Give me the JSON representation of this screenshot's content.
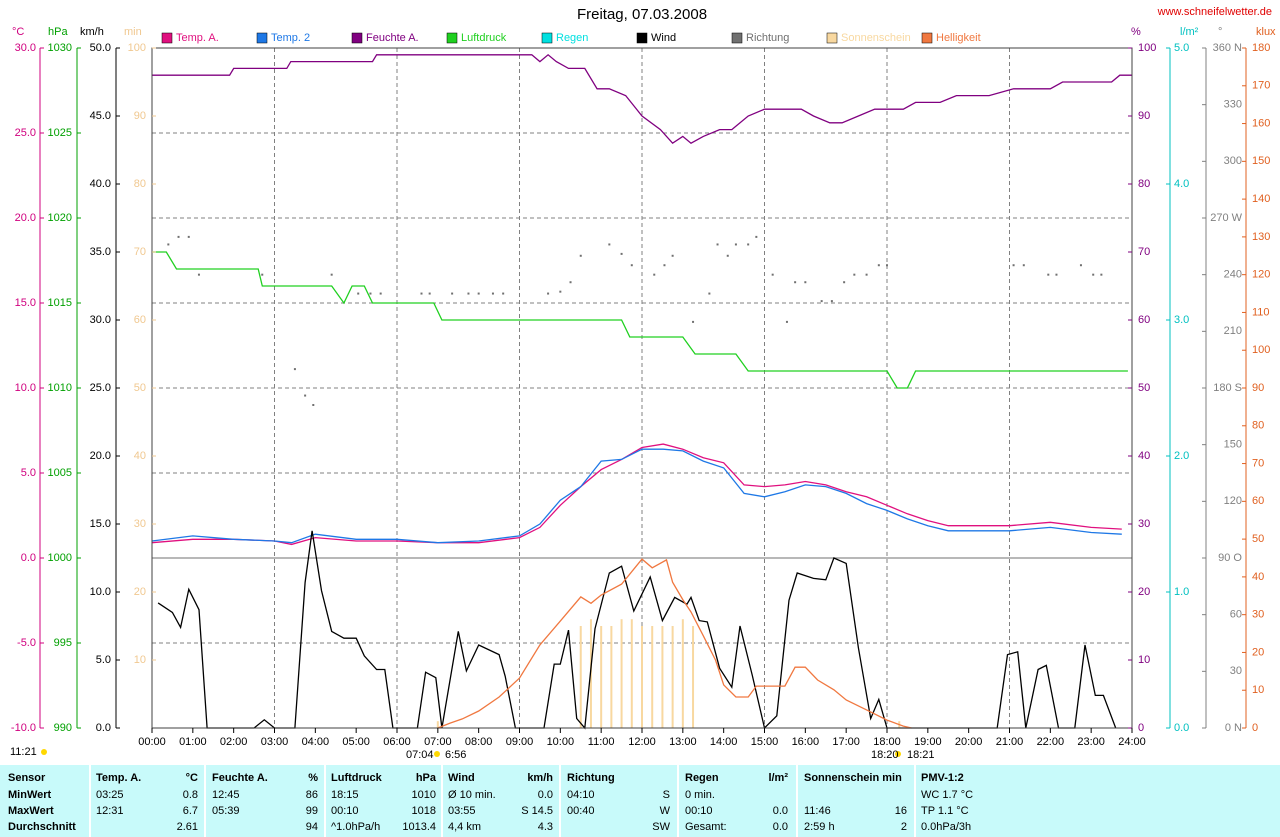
{
  "chart_data": {
    "type": "line",
    "title": "Freitag, 07.03.2008",
    "source": "www.schneifelwetter.de",
    "grid": true,
    "xlim": [
      0,
      24
    ],
    "xticks": [
      {
        "value": 0,
        "label": "00:00"
      },
      {
        "value": 1,
        "label": "01:00"
      },
      {
        "value": 2,
        "label": "02:00"
      },
      {
        "value": 3,
        "label": "03:00"
      },
      {
        "value": 4,
        "label": "04:00"
      },
      {
        "value": 5,
        "label": "05:00"
      },
      {
        "value": 6,
        "label": "06:00"
      },
      {
        "value": 7,
        "label": "07:00"
      },
      {
        "value": 8,
        "label": "08:00"
      },
      {
        "value": 9,
        "label": "09:00"
      },
      {
        "value": 10,
        "label": "10:00"
      },
      {
        "value": 11,
        "label": "11:00"
      },
      {
        "value": 12,
        "label": "12:00"
      },
      {
        "value": 13,
        "label": "13:00"
      },
      {
        "value": 14,
        "label": "14:00"
      },
      {
        "value": 15,
        "label": "15:00"
      },
      {
        "value": 16,
        "label": "16:00"
      },
      {
        "value": 17,
        "label": "17:00"
      },
      {
        "value": 18,
        "label": "18:00"
      },
      {
        "value": 19,
        "label": "19:00"
      },
      {
        "value": 20,
        "label": "20:00"
      },
      {
        "value": 21,
        "label": "21:00"
      },
      {
        "value": 22,
        "label": "22:00"
      },
      {
        "value": 23,
        "label": "23:00"
      },
      {
        "value": 24,
        "label": "24:00"
      }
    ],
    "axes": [
      {
        "label": "°C",
        "color": "#d0007f",
        "lim": [
          -10,
          30
        ],
        "ticks": [
          {
            "value": 30,
            "label": "30.0"
          },
          {
            "value": 25,
            "label": "25.0"
          },
          {
            "value": 20,
            "label": "20.0"
          },
          {
            "value": 15,
            "label": "15.0"
          },
          {
            "value": 10,
            "label": "10.0"
          },
          {
            "value": 5,
            "label": "5.0"
          },
          {
            "value": 0,
            "label": "0.0"
          },
          {
            "value": -5,
            "label": "-5.0"
          },
          {
            "value": -10,
            "label": "-10.0"
          }
        ]
      },
      {
        "label": "hPa",
        "color": "#00a000",
        "lim": [
          990,
          1030
        ],
        "ticks": [
          1030,
          1025,
          1020,
          1015,
          1010,
          1005,
          1000,
          995,
          990
        ]
      },
      {
        "label": "km/h",
        "color": "#000000",
        "lim": [
          0,
          50
        ],
        "ticks": [
          {
            "value": 50,
            "label": "50.0"
          },
          {
            "value": 45,
            "label": "45.0"
          },
          {
            "value": 40,
            "label": "40.0"
          },
          {
            "value": 35,
            "label": "35.0"
          },
          {
            "value": 30,
            "label": "30.0"
          },
          {
            "value": 25,
            "label": "25.0"
          },
          {
            "value": 20,
            "label": "20.0"
          },
          {
            "value": 15,
            "label": "15.0"
          },
          {
            "value": 10,
            "label": "10.0"
          },
          {
            "value": 5,
            "label": "5.0"
          },
          {
            "value": 0,
            "label": "0.0"
          }
        ]
      },
      {
        "label": "min",
        "color": "#f0c890",
        "lim": [
          0,
          100
        ],
        "ticks": [
          100,
          90,
          80,
          70,
          60,
          50,
          40,
          30,
          20,
          10
        ]
      },
      {
        "label": "%",
        "color": "#800080",
        "lim": [
          0,
          100
        ],
        "ticks": [
          100,
          90,
          80,
          70,
          60,
          50,
          40,
          30,
          20,
          10,
          0
        ]
      },
      {
        "label": "l/m²",
        "color": "#00c0c0",
        "lim": [
          0,
          5
        ],
        "ticks": [
          {
            "value": 5,
            "label": "5.0"
          },
          {
            "value": 4,
            "label": "4.0"
          },
          {
            "value": 3,
            "label": "3.0"
          },
          {
            "value": 2,
            "label": "2.0"
          },
          {
            "value": 1,
            "label": "1.0"
          },
          {
            "value": 0,
            "label": "0.0"
          }
        ]
      },
      {
        "label": "°",
        "color": "#808080",
        "lim": [
          0,
          360
        ],
        "ticks": [
          {
            "value": 360,
            "label": "360 N"
          },
          330,
          300,
          {
            "value": 270,
            "label": "270 W"
          },
          240,
          210,
          {
            "value": 180,
            "label": "180 S"
          },
          150,
          120,
          {
            "value": 90,
            "label": "90 O"
          },
          60,
          30,
          {
            "value": 0,
            "label": "0 N"
          }
        ]
      },
      {
        "label": "klux",
        "color": "#e06020",
        "lim": [
          0,
          180
        ],
        "ticks": [
          180,
          170,
          160,
          150,
          140,
          130,
          120,
          110,
          100,
          90,
          80,
          70,
          60,
          50,
          40,
          30,
          20,
          10,
          0
        ]
      }
    ],
    "series": [
      {
        "name": "Temp. A.",
        "color": "#e0107f",
        "type": "line",
        "axis": 0,
        "x": [
          0,
          1,
          2,
          3,
          3.42,
          4,
          5,
          6,
          7,
          8,
          9,
          9.5,
          10,
          10.5,
          11,
          11.5,
          12,
          12.52,
          13,
          13.5,
          14,
          14.5,
          15,
          15.5,
          16,
          16.5,
          17,
          17.5,
          18,
          18.5,
          19,
          19.5,
          20,
          21,
          22,
          23,
          23.75
        ],
        "values": [
          0.9,
          1.1,
          1.1,
          1.0,
          0.8,
          1.2,
          1.0,
          1.0,
          0.9,
          0.9,
          1.2,
          1.8,
          3.1,
          4.2,
          5.2,
          5.8,
          6.5,
          6.7,
          6.4,
          5.9,
          5.6,
          4.3,
          4.2,
          4.3,
          4.5,
          4.3,
          3.9,
          3.6,
          3.1,
          2.6,
          2.2,
          1.9,
          1.9,
          1.9,
          2.1,
          1.8,
          1.7
        ]
      },
      {
        "name": "Temp. 2",
        "color": "#1e78e6",
        "type": "line",
        "axis": 0,
        "x": [
          0,
          1,
          2,
          3,
          3.42,
          4,
          5,
          6,
          7,
          8,
          9,
          9.5,
          10,
          10.5,
          11,
          11.5,
          12,
          12.52,
          13,
          13.5,
          14,
          14.5,
          15,
          15.5,
          16,
          16.5,
          17,
          17.5,
          18,
          18.5,
          19,
          19.5,
          20,
          21,
          22,
          23,
          23.75
        ],
        "values": [
          1.0,
          1.3,
          1.1,
          1.0,
          0.9,
          1.4,
          1.1,
          1.1,
          0.9,
          1.0,
          1.3,
          2.0,
          3.4,
          4.2,
          5.7,
          5.8,
          6.4,
          6.4,
          6.3,
          5.7,
          5.3,
          3.8,
          3.6,
          3.9,
          4.3,
          4.2,
          3.8,
          3.2,
          2.8,
          2.3,
          1.9,
          1.6,
          1.6,
          1.6,
          1.8,
          1.5,
          1.4
        ]
      },
      {
        "name": "Feuchte A.",
        "color": "#800080",
        "type": "line",
        "axis": 4,
        "x": [
          0,
          1.9,
          2.0,
          3.3,
          3.4,
          5.4,
          5.5,
          9.3,
          9.5,
          9.7,
          9.9,
          10.2,
          10.6,
          10.9,
          11.2,
          11.6,
          12.0,
          12.45,
          12.75,
          13.0,
          13.2,
          13.5,
          13.9,
          14.2,
          14.6,
          15.0,
          15.9,
          16.2,
          16.6,
          16.9,
          17.3,
          17.7,
          18.4,
          18.7,
          19.3,
          19.7,
          20.5,
          21.1,
          22.0,
          22.3,
          23.5,
          23.7,
          24.0
        ],
        "values": [
          96,
          96,
          97,
          97,
          98,
          98,
          99,
          99,
          98,
          99,
          98,
          97,
          97,
          94,
          94,
          93,
          90,
          88,
          86,
          87,
          86,
          87,
          88,
          88,
          90,
          91,
          91,
          90,
          89,
          89,
          90,
          91,
          91,
          92,
          92,
          93,
          93,
          94,
          94,
          95,
          95,
          96,
          96
        ]
      },
      {
        "name": "Luftdruck",
        "color": "#20d020",
        "type": "line",
        "axis": 1,
        "x": [
          0,
          0.35,
          0.6,
          2.6,
          2.7,
          4.4,
          4.7,
          4.9,
          5.2,
          5.4,
          6.9,
          7.1,
          11.5,
          11.7,
          13.0,
          13.3,
          14.3,
          14.6,
          18.0,
          18.25,
          18.5,
          18.7,
          23.9
        ],
        "values": [
          1018,
          1018,
          1017,
          1017,
          1016,
          1016,
          1015,
          1016,
          1016,
          1015,
          1015,
          1014,
          1014,
          1013,
          1013,
          1012,
          1012,
          1011,
          1011,
          1010,
          1010,
          1011,
          1011
        ]
      },
      {
        "name": "Regen",
        "color": "#00e0e0"
      },
      {
        "name": "Wind",
        "color": "#000000",
        "type": "line",
        "axis": 2,
        "x": [
          0.15,
          0.5,
          0.7,
          0.9,
          1.15,
          1.35,
          2.5,
          2.75,
          3.0,
          3.5,
          3.75,
          3.92,
          4.15,
          4.4,
          4.7,
          5.0,
          5.2,
          5.5,
          5.7,
          5.9,
          6.5,
          6.7,
          6.95,
          7.1,
          7.5,
          7.7,
          8.0,
          8.5,
          8.65,
          8.9,
          9.6,
          9.85,
          10.0,
          10.2,
          10.4,
          10.6,
          10.85,
          11.2,
          11.5,
          11.8,
          12.2,
          12.5,
          12.8,
          13.1,
          13.2,
          13.4,
          13.6,
          13.9,
          14.2,
          14.4,
          14.7,
          15.0,
          15.3,
          15.6,
          15.8,
          16.2,
          16.5,
          16.7,
          17.0,
          17.3,
          17.6,
          17.8,
          18.0,
          20.7,
          20.95,
          21.2,
          21.4,
          21.7,
          21.9,
          22.2,
          22.6,
          22.85,
          23.1,
          23.3,
          23.6
        ],
        "values": [
          9.2,
          8.5,
          7.4,
          10.2,
          8.7,
          0,
          0,
          0.6,
          0,
          0,
          10.7,
          14.5,
          10.1,
          7.1,
          6.6,
          6.6,
          5.3,
          4.3,
          4.3,
          0,
          0,
          4.1,
          3.7,
          0,
          7.1,
          4.2,
          6.1,
          5.4,
          3.8,
          0,
          0,
          4.7,
          4.7,
          7.2,
          0.7,
          0,
          7.3,
          11.4,
          11.9,
          8.6,
          11.1,
          7.9,
          9.6,
          9.1,
          9.6,
          7.9,
          7.8,
          4.4,
          3.0,
          7.5,
          3.9,
          0,
          0.9,
          9.4,
          11.4,
          11.0,
          10.9,
          12.5,
          12.1,
          5.9,
          0.7,
          2.1,
          0,
          0,
          5.4,
          5.6,
          0,
          4.3,
          4.6,
          0,
          0,
          6.1,
          2.4,
          2.4,
          0
        ]
      },
      {
        "name": "Richtung",
        "color": "#707070",
        "type": "scatter",
        "axis": 6,
        "x": [
          0.4,
          0.65,
          0.9,
          1.15,
          2.7,
          3.5,
          3.75,
          3.95,
          4.4,
          5.05,
          5.35,
          5.6,
          6.6,
          6.8,
          7.35,
          7.75,
          8.0,
          8.35,
          8.6,
          9.7,
          10.0,
          10.25,
          10.5,
          11.2,
          11.5,
          11.75,
          12.3,
          12.55,
          12.75,
          13.25,
          13.65,
          13.85,
          14.1,
          14.3,
          14.6,
          14.8,
          15.2,
          15.55,
          15.75,
          16.0,
          16.4,
          16.65,
          16.95,
          17.2,
          17.5,
          17.8,
          18.0,
          21.1,
          21.35,
          21.95,
          22.15,
          22.75,
          23.05,
          23.25
        ],
        "values": [
          256,
          260,
          260,
          240,
          240,
          190,
          176,
          171,
          240,
          230,
          230,
          230,
          230,
          230,
          230,
          230,
          230,
          230,
          230,
          230,
          231,
          236,
          250,
          256,
          251,
          245,
          240,
          245,
          250,
          215,
          230,
          256,
          250,
          256,
          256,
          260,
          240,
          215,
          236,
          236,
          226,
          226,
          236,
          240,
          240,
          245,
          245,
          245,
          245,
          240,
          240,
          245,
          240,
          240
        ]
      },
      {
        "name": "Sonnenschein",
        "color": "#f8d8a0",
        "type": "bar",
        "axis": 3,
        "x": [
          7.0,
          10.5,
          10.75,
          11.0,
          11.25,
          11.5,
          11.75,
          12.0,
          12.25,
          12.5,
          12.75,
          13.0,
          13.25,
          18.3
        ],
        "values": [
          1,
          15,
          16,
          15,
          15,
          16,
          16,
          15,
          15,
          15,
          15,
          16,
          15,
          1
        ]
      },
      {
        "name": "Helligkeit",
        "color": "#f07840",
        "type": "line",
        "axis": 7,
        "x": [
          7.0,
          7.3,
          7.6,
          8.0,
          8.5,
          9.0,
          9.5,
          10.0,
          10.5,
          10.75,
          11.0,
          11.5,
          12.0,
          12.25,
          12.6,
          12.75,
          13.0,
          13.2,
          13.5,
          13.8,
          14.0,
          14.3,
          14.6,
          14.8,
          15.5,
          15.75,
          16.0,
          16.3,
          16.7,
          17.0,
          17.5,
          18.0,
          18.4,
          18.6
        ],
        "values": [
          0,
          1.3,
          2.4,
          4.5,
          8.2,
          13.2,
          22,
          28.3,
          34.7,
          33,
          35.2,
          38.1,
          44.7,
          42.4,
          44.5,
          38.6,
          34,
          30.7,
          24.4,
          18,
          11.4,
          8.2,
          8.2,
          11.1,
          11.1,
          16.1,
          16.1,
          12.7,
          10.1,
          7.4,
          4.8,
          2.1,
          0.5,
          0
        ]
      }
    ],
    "notes": {
      "day_length": "11:21",
      "sunrise": "07:04",
      "sunrise_alt": "6:56",
      "sunset": "18:20",
      "sunset_alt": "18:21"
    }
  },
  "table": {
    "header": {
      "label": "Sensor",
      "cells": [
        "Temp. A.",
        "°C",
        "Feuchte A.",
        "%",
        "Luftdruck",
        "hPa",
        "Wind",
        "km/h",
        "Richtung",
        null,
        "Regen",
        "l/m²",
        "Sonnenschein min",
        null,
        "PMV-1:2",
        null
      ]
    },
    "rows": [
      {
        "label": "MinWert",
        "cells": [
          "03:25",
          "0.8",
          "12:45",
          "86",
          "18:15",
          "1010",
          "Ø 10 min.",
          "0.0",
          "04:10",
          "S",
          "0 min.",
          null,
          null,
          null,
          "WC 1.7 °C",
          null
        ]
      },
      {
        "label": "MaxWert",
        "cells": [
          "12:31",
          "6.7",
          "05:39",
          "99",
          "00:10",
          "1018",
          "03:55",
          "S 14.5",
          "00:40",
          "W",
          "00:10",
          "0.0",
          "11:46",
          "16",
          "TP 1.1 °C",
          null
        ]
      },
      {
        "label": "Durchschnitt",
        "cells": [
          null,
          "2.61",
          null,
          "94",
          "^1.0hPa/h",
          "1013.4",
          "4,4 km",
          "4.3",
          null,
          "SW",
          "Gesamt:",
          "0.0",
          "2:59 h",
          "2",
          "0.0hPa/3h",
          null
        ]
      }
    ]
  }
}
